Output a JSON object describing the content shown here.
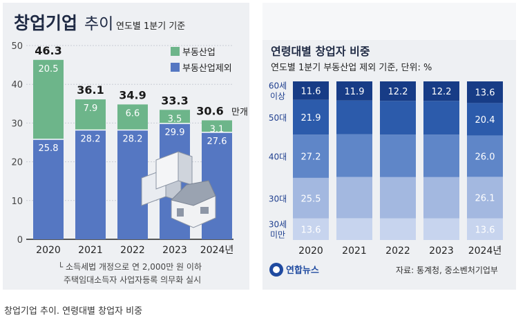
{
  "caption": "창업기업 추이. 연령대별 창업자 비중",
  "left_chart": {
    "title_main": "창업기업",
    "title_sub": "추이",
    "subtitle": "연도별 1분기 기준",
    "unit_suffix": "만개",
    "note_line1": "└ 소득세법 개정으로 연 2,000만 원 이하",
    "note_line2": "주택임대소득자 사업자등록 의무화 실시",
    "colors": {
      "real_estate": "#6db58a",
      "excl_real_estate": "#5577c2"
    }
  },
  "right_chart": {
    "title": "연령대별 창업자 비중",
    "subtitle": "연도별 1분기 부동산업 제외 기준, 단위: %",
    "source": "자료: 통계청, 중소벤처기업부",
    "logo_text": "연합뉴스",
    "age_labels": [
      {
        "line1": "60세",
        "line2": "이상"
      },
      {
        "line1": "50대",
        "line2": ""
      },
      {
        "line1": "40대",
        "line2": ""
      },
      {
        "line1": "30대",
        "line2": ""
      },
      {
        "line1": "30세",
        "line2": "미만"
      }
    ],
    "colors": [
      "#173c86",
      "#2c5bab",
      "#5f86c8",
      "#a3b8e0",
      "#c7d4ee"
    ]
  },
  "chart_data": [
    {
      "type": "bar",
      "stacked": true,
      "categories": [
        "2020",
        "2021",
        "2022",
        "2023",
        "2024년"
      ],
      "series": [
        {
          "name": "부동산업제외",
          "values": [
            25.8,
            28.2,
            28.2,
            29.9,
            27.6
          ]
        },
        {
          "name": "부동산업",
          "values": [
            20.5,
            7.9,
            6.6,
            3.5,
            3.1
          ]
        }
      ],
      "totals": [
        "46.3",
        "36.1",
        "34.9",
        "33.3",
        "30.6"
      ],
      "yticks": [
        "0",
        "10",
        "20",
        "30",
        "40",
        "50"
      ],
      "ylim": [
        0,
        50
      ],
      "legend_position": "top-right",
      "grid": true
    },
    {
      "type": "bar",
      "stacked": true,
      "percent": true,
      "categories": [
        "2020",
        "2021",
        "2022",
        "2023",
        "2024년"
      ],
      "series": [
        {
          "name": "30세 미만",
          "values": [
            13.6,
            null,
            null,
            null,
            13.6
          ]
        },
        {
          "name": "30대",
          "values": [
            25.5,
            null,
            null,
            null,
            26.1
          ]
        },
        {
          "name": "40대",
          "values": [
            27.2,
            null,
            null,
            null,
            26.0
          ]
        },
        {
          "name": "50대",
          "values": [
            21.9,
            null,
            null,
            null,
            20.4
          ]
        },
        {
          "name": "60세 이상",
          "values": [
            11.6,
            11.9,
            12.2,
            12.2,
            13.6
          ]
        }
      ],
      "grid": false
    }
  ]
}
